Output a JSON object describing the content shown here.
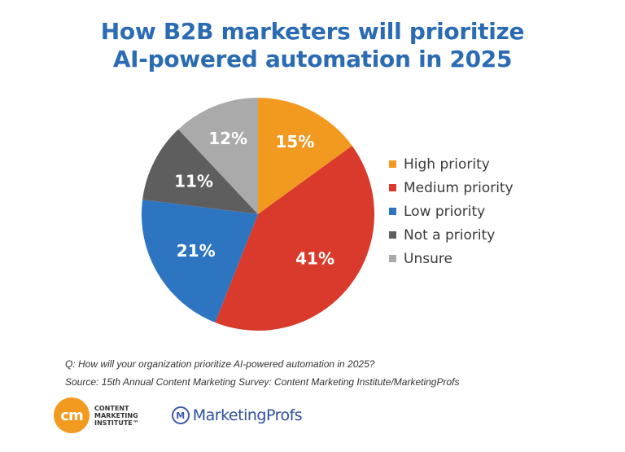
{
  "chart_data": {
    "type": "pie",
    "title_lines": [
      "How B2B marketers will prioritize",
      "AI-powered automation in 2025"
    ],
    "slices": [
      {
        "label": "High priority",
        "value": 15,
        "display": "15%",
        "color": "#f29a20"
      },
      {
        "label": "Medium priority",
        "value": 41,
        "display": "41%",
        "color": "#d93a2b"
      },
      {
        "label": "Low priority",
        "value": 21,
        "display": "21%",
        "color": "#2e75c1"
      },
      {
        "label": "Not a priority",
        "value": 11,
        "display": "11%",
        "color": "#5e5e5e"
      },
      {
        "label": "Unsure",
        "value": 12,
        "display": "12%",
        "color": "#aaaaaa"
      }
    ],
    "legend_position": "right"
  },
  "notes": {
    "question": "Q: How will your organization prioritize AI-powered automation in 2025?",
    "source": "Source: 15th Annual Content Marketing Survey: Content Marketing Institute/MarketingProfs"
  },
  "logos": {
    "cmi_badge": "cm",
    "cmi_lines": [
      "CONTENT",
      "MARKETING",
      "INSTITUTE™"
    ],
    "mp_icon": "M",
    "mp_name": "MarketingProfs"
  }
}
